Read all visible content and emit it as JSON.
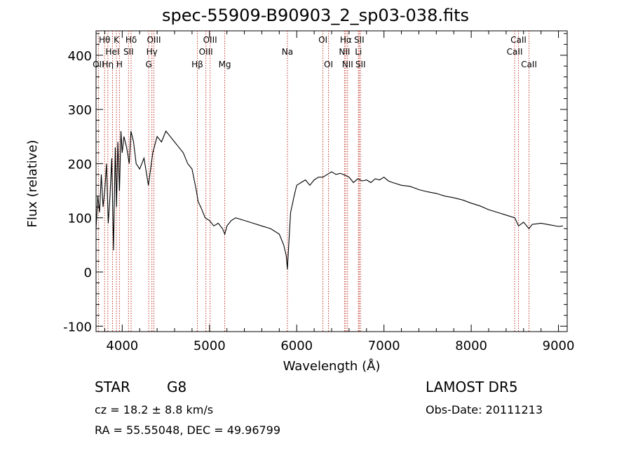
{
  "chart_data": {
    "type": "line",
    "title": "spec-55909-B90903_2_sp03-038.fits",
    "xlabel": "Wavelength (Å)",
    "ylabel": "Flux (relative)",
    "xlim": [
      3700,
      9100
    ],
    "ylim": [
      -110,
      445
    ],
    "x_ticks": [
      4000,
      5000,
      6000,
      7000,
      8000,
      9000
    ],
    "y_ticks": [
      -100,
      0,
      100,
      200,
      300,
      400
    ],
    "grid": false,
    "line_color": "#000000",
    "marker_color": "#c0392b",
    "spectrum": {
      "x": [
        3700,
        3720,
        3740,
        3760,
        3780,
        3800,
        3820,
        3840,
        3860,
        3880,
        3900,
        3920,
        3935,
        3950,
        3968,
        3985,
        4000,
        4020,
        4050,
        4080,
        4100,
        4130,
        4160,
        4200,
        4250,
        4300,
        4350,
        4400,
        4450,
        4500,
        4550,
        4600,
        4650,
        4700,
        4750,
        4800,
        4850,
        4870,
        4900,
        4950,
        5000,
        5050,
        5100,
        5150,
        5175,
        5200,
        5250,
        5300,
        5400,
        5500,
        5600,
        5700,
        5800,
        5850,
        5880,
        5893,
        5905,
        5930,
        5970,
        6000,
        6050,
        6100,
        6150,
        6200,
        6250,
        6300,
        6350,
        6400,
        6450,
        6500,
        6563,
        6600,
        6650,
        6700,
        6750,
        6800,
        6850,
        6900,
        6950,
        7000,
        7050,
        7100,
        7200,
        7300,
        7400,
        7500,
        7600,
        7700,
        7800,
        7900,
        8000,
        8100,
        8200,
        8300,
        8400,
        8500,
        8542,
        8600,
        8662,
        8700,
        8800,
        8900,
        9000,
        9050
      ],
      "y": [
        80,
        140,
        110,
        180,
        120,
        150,
        200,
        90,
        140,
        210,
        40,
        230,
        120,
        240,
        150,
        260,
        220,
        250,
        230,
        200,
        260,
        240,
        200,
        190,
        210,
        160,
        220,
        250,
        240,
        260,
        250,
        240,
        230,
        220,
        200,
        190,
        150,
        130,
        120,
        100,
        95,
        85,
        90,
        80,
        70,
        85,
        95,
        100,
        95,
        90,
        85,
        80,
        70,
        50,
        30,
        5,
        40,
        110,
        140,
        160,
        165,
        170,
        160,
        170,
        175,
        175,
        180,
        185,
        180,
        182,
        178,
        175,
        165,
        172,
        168,
        170,
        165,
        172,
        170,
        175,
        168,
        165,
        160,
        158,
        152,
        148,
        145,
        140,
        137,
        133,
        127,
        122,
        115,
        110,
        105,
        100,
        85,
        92,
        80,
        88,
        90,
        87,
        84,
        85
      ]
    },
    "lines": [
      {
        "w": 3727,
        "label": "OII",
        "row": 3
      },
      {
        "w": 3798,
        "label": "Hθ",
        "row": 1
      },
      {
        "w": 3835,
        "label": "Hη",
        "row": 3
      },
      {
        "w": 3889,
        "label": "HeI",
        "row": 2
      },
      {
        "w": 3934,
        "label": "K",
        "row": 1
      },
      {
        "w": 3968,
        "label": "H",
        "row": 3
      },
      {
        "w": 4072,
        "label": "SII",
        "row": 2
      },
      {
        "w": 4102,
        "label": "Hδ",
        "row": 1
      },
      {
        "w": 4304,
        "label": "G",
        "row": 3
      },
      {
        "w": 4340,
        "label": "Hγ",
        "row": 2
      },
      {
        "w": 4363,
        "label": "OIII",
        "row": 1
      },
      {
        "w": 4861,
        "label": "Hβ",
        "row": 3
      },
      {
        "w": 4959,
        "label": "OIII",
        "row": 2
      },
      {
        "w": 5007,
        "label": "OIII",
        "row": 1
      },
      {
        "w": 5175,
        "label": "Mg",
        "row": 3
      },
      {
        "w": 5893,
        "label": "Na",
        "row": 2
      },
      {
        "w": 6300,
        "label": "OI",
        "row": 1
      },
      {
        "w": 6364,
        "label": "OI",
        "row": 3
      },
      {
        "w": 6548,
        "label": "NII",
        "row": 2
      },
      {
        "w": 6563,
        "label": "Hα",
        "row": 1
      },
      {
        "w": 6583,
        "label": "NII",
        "row": 3
      },
      {
        "w": 6707,
        "label": "Li",
        "row": 2
      },
      {
        "w": 6716,
        "label": "SII",
        "row": 1
      },
      {
        "w": 6731,
        "label": "SII",
        "row": 3
      },
      {
        "w": 8498,
        "label": "CaII",
        "row": 2
      },
      {
        "w": 8542,
        "label": "CaII",
        "row": 1
      },
      {
        "w": 8662,
        "label": "CaII",
        "row": 3
      }
    ]
  },
  "footer": {
    "class_label": "STAR",
    "subclass_label": "G8",
    "survey": "LAMOST DR5",
    "cz_line": "cz = 18.2 ± 8.8 km/s",
    "obs_date": "Obs-Date: 20111213",
    "radec": "RA =  55.55048, DEC =  49.96799"
  }
}
